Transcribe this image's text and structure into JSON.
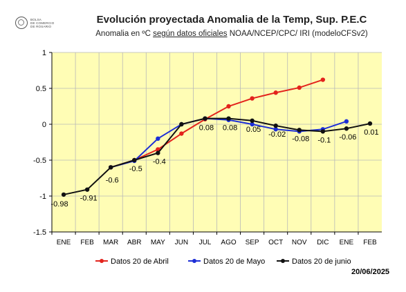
{
  "header": {
    "title": "Evolución proyectada Anomalia de la Temp, Sup. P.E.C",
    "subtitle_prefix": "Anomalia en ºC ",
    "subtitle_underlined": "según datos oficiales",
    "subtitle_suffix": " NOAA/NCEP/CPC/ IRI (modeloCFSv2)"
  },
  "logo": {
    "line1": "BOLSA",
    "line2": "DE COMERCIO",
    "line3": "DE ROSARIO"
  },
  "date_stamp": "20/06/2025",
  "colors": {
    "plot_background": "#fffdb5",
    "grid": "#b8b8b8",
    "abril": "#e3231c",
    "mayo": "#1c2ed6",
    "junio": "#111111"
  },
  "chart_data": {
    "type": "line",
    "categories": [
      "ENE",
      "FEB",
      "MAR",
      "ABR",
      "MAY",
      "JUN",
      "JUL",
      "AGO",
      "SEP",
      "OCT",
      "NOV",
      "DIC",
      "ENE",
      "FEB"
    ],
    "ylim": [
      -1.5,
      1
    ],
    "yticks": [
      -1.5,
      -1,
      -0.5,
      0,
      0.5,
      1
    ],
    "ytick_labels": [
      "-1.5",
      "-1",
      "-0.5",
      "0",
      "0.5",
      "1"
    ],
    "grid": true,
    "legend_position": "bottom",
    "series": [
      {
        "name": "Datos 20 de Abril",
        "color_key": "abril",
        "values": [
          null,
          null,
          -0.6,
          -0.5,
          -0.35,
          -0.13,
          0.07,
          0.25,
          0.36,
          0.44,
          0.51,
          0.62,
          null,
          null
        ]
      },
      {
        "name": "Datos 20 de Mayo",
        "color_key": "mayo",
        "values": [
          null,
          null,
          -0.6,
          -0.51,
          -0.2,
          0.0,
          0.08,
          0.06,
          0.0,
          -0.07,
          -0.1,
          -0.07,
          0.04,
          null
        ]
      },
      {
        "name": "Datos 20 de junio",
        "color_key": "junio",
        "values": [
          -0.98,
          -0.91,
          -0.6,
          -0.5,
          -0.4,
          0.0,
          0.08,
          0.08,
          0.05,
          -0.02,
          -0.08,
          -0.1,
          -0.06,
          0.01
        ]
      }
    ],
    "data_labels": [
      {
        "index": 0,
        "text": "-0.98"
      },
      {
        "index": 1,
        "text": "-0.91"
      },
      {
        "index": 2,
        "text": "-0.6"
      },
      {
        "index": 3,
        "text": "-0.5"
      },
      {
        "index": 4,
        "text": "-0.4"
      },
      {
        "index": 6,
        "text": "0.08"
      },
      {
        "index": 7,
        "text": "0.08"
      },
      {
        "index": 8,
        "text": "0.05"
      },
      {
        "index": 9,
        "text": "-0.02"
      },
      {
        "index": 10,
        "text": "-0.08"
      },
      {
        "index": 11,
        "text": "-0.1"
      },
      {
        "index": 12,
        "text": "-0.06"
      },
      {
        "index": 13,
        "text": "0.01"
      }
    ]
  }
}
